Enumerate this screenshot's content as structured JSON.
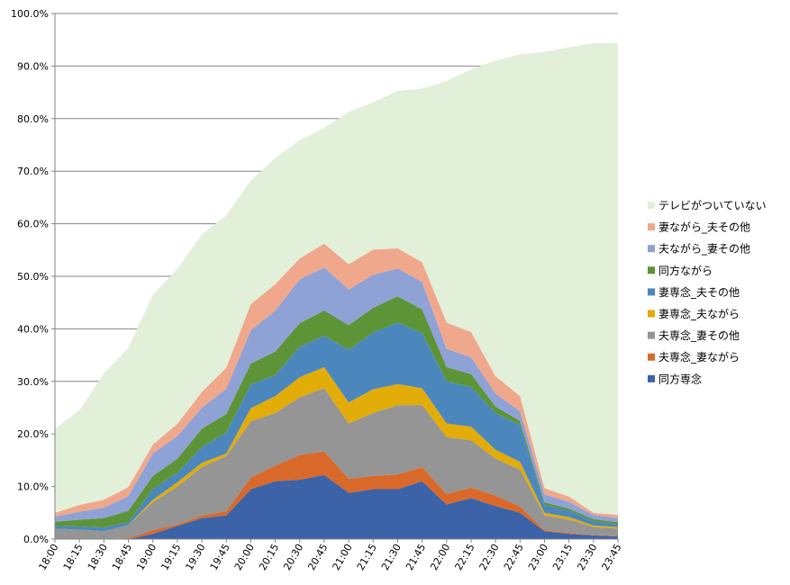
{
  "chart_data": {
    "type": "area",
    "stacked": true,
    "title": "",
    "xlabel": "",
    "ylabel": "",
    "ylim": [
      0,
      100
    ],
    "y_tick_labels": [
      "0.0%",
      "10.0%",
      "20.0%",
      "30.0%",
      "40.0%",
      "50.0%",
      "60.0%",
      "70.0%",
      "80.0%",
      "90.0%",
      "100.0%"
    ],
    "grid": "horizontal",
    "legend_position": "right",
    "categories": [
      "18:00",
      "18:15",
      "18:30",
      "18:45",
      "19:00",
      "19:15",
      "19:30",
      "19:45",
      "20:00",
      "20:15",
      "20:30",
      "20:45",
      "21:00",
      "21:15",
      "21:30",
      "21:45",
      "22:00",
      "22:15",
      "22:30",
      "22:45",
      "23:00",
      "23:15",
      "23:30",
      "23:45"
    ],
    "series": [
      {
        "name": "同方専念",
        "color": "#3c63a8",
        "values": [
          0.0,
          0.0,
          0.0,
          0.0,
          1.0,
          2.5,
          4.0,
          4.5,
          9.5,
          11.0,
          11.3,
          12.2,
          8.8,
          9.5,
          9.5,
          11.0,
          6.6,
          7.8,
          6.3,
          5.0,
          1.5,
          1.0,
          0.7,
          0.5
        ]
      },
      {
        "name": "夫専念_妻ながら",
        "color": "#d9692a",
        "values": [
          0.0,
          0.0,
          0.0,
          0.2,
          0.7,
          0.3,
          0.5,
          0.8,
          2.2,
          3.0,
          4.7,
          4.5,
          2.7,
          2.5,
          2.8,
          2.7,
          2.0,
          2.0,
          2.0,
          1.2,
          0.2,
          0.2,
          0.1,
          0.1
        ]
      },
      {
        "name": "夫専念_妻その他",
        "color": "#959595",
        "values": [
          2.0,
          1.8,
          1.5,
          2.5,
          5.3,
          7.2,
          9.2,
          10.5,
          10.7,
          10.0,
          11.0,
          12.0,
          10.5,
          12.0,
          13.2,
          11.8,
          10.8,
          9.0,
          7.0,
          7.0,
          2.8,
          2.5,
          1.5,
          1.4
        ]
      },
      {
        "name": "妻専念_夫ながら",
        "color": "#e2ac09",
        "values": [
          0.0,
          0.0,
          0.0,
          0.0,
          0.5,
          0.8,
          0.8,
          0.5,
          2.5,
          3.2,
          3.8,
          4.0,
          4.0,
          4.5,
          4.0,
          3.2,
          2.6,
          2.6,
          1.7,
          1.5,
          0.5,
          0.5,
          0.3,
          0.3
        ]
      },
      {
        "name": "妻専念_夫その他",
        "color": "#4b87bd",
        "values": [
          0.5,
          0.6,
          0.7,
          0.5,
          2.0,
          1.8,
          3.0,
          4.0,
          4.5,
          4.0,
          5.8,
          6.0,
          10.0,
          10.8,
          11.7,
          10.5,
          8.0,
          7.5,
          7.0,
          7.0,
          1.5,
          1.2,
          0.8,
          0.5
        ]
      },
      {
        "name": "同方ながら",
        "color": "#5d9438",
        "values": [
          0.8,
          1.3,
          1.8,
          2.2,
          2.5,
          2.7,
          3.5,
          3.5,
          4.0,
          4.5,
          4.5,
          4.8,
          4.7,
          4.7,
          5.0,
          4.5,
          2.7,
          2.5,
          1.2,
          0.8,
          0.5,
          0.4,
          0.4,
          0.4
        ]
      },
      {
        "name": "夫ながら_妻その他",
        "color": "#8fa2d6",
        "values": [
          1.0,
          1.5,
          2.0,
          2.8,
          4.3,
          4.3,
          4.0,
          4.8,
          6.3,
          7.8,
          8.3,
          8.2,
          6.8,
          6.3,
          5.3,
          5.2,
          3.5,
          3.2,
          2.5,
          1.8,
          1.5,
          1.3,
          0.8,
          0.8
        ]
      },
      {
        "name": "妻ながら_夫その他",
        "color": "#f0a88c",
        "values": [
          0.7,
          1.3,
          1.5,
          1.7,
          1.7,
          2.3,
          3.0,
          4.0,
          5.0,
          5.0,
          4.0,
          4.5,
          4.8,
          4.8,
          3.8,
          3.8,
          5.0,
          4.8,
          3.3,
          2.9,
          1.2,
          1.0,
          0.4,
          0.6
        ]
      },
      {
        "name": "テレビがついていない",
        "color": "#e2efd9",
        "values": [
          16.0,
          18.0,
          24.0,
          26.5,
          28.5,
          29.5,
          30.0,
          29.0,
          23.5,
          24.0,
          22.5,
          22.0,
          29.0,
          28.0,
          30.0,
          33.0,
          46.0,
          50.0,
          60.0,
          65.0,
          83.0,
          85.5,
          89.3,
          89.8
        ]
      }
    ]
  }
}
